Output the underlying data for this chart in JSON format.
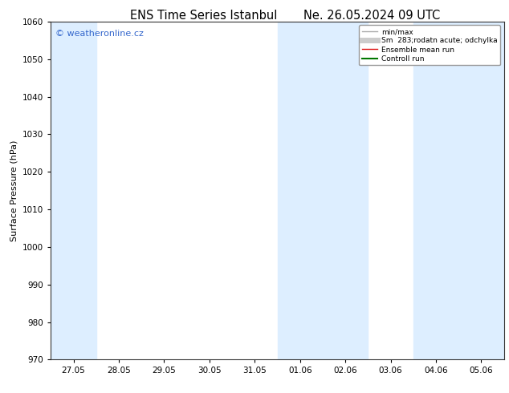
{
  "title_left": "ENS Time Series Istanbul",
  "title_right": "Ne. 26.05.2024 09 UTC",
  "ylabel": "Surface Pressure (hPa)",
  "ylim": [
    970,
    1060
  ],
  "yticks": [
    970,
    980,
    990,
    1000,
    1010,
    1020,
    1030,
    1040,
    1050,
    1060
  ],
  "x_labels": [
    "27.05",
    "28.05",
    "29.05",
    "30.05",
    "31.05",
    "01.06",
    "02.06",
    "03.06",
    "04.06",
    "05.06"
  ],
  "x_values": [
    0,
    1,
    2,
    3,
    4,
    5,
    6,
    7,
    8,
    9
  ],
  "xlim": [
    -0.5,
    9.5
  ],
  "shaded_bands": [
    {
      "x_start": -0.5,
      "x_end": 0.5,
      "color": "#ddeeff"
    },
    {
      "x_start": 4.5,
      "x_end": 6.5,
      "color": "#ddeeff"
    },
    {
      "x_start": 7.5,
      "x_end": 9.5,
      "color": "#ddeeff"
    }
  ],
  "watermark": "© weatheronline.cz",
  "watermark_color": "#3366cc",
  "legend_entries": [
    {
      "label": "min/max",
      "color": "#aaaaaa",
      "lw": 1.0
    },
    {
      "label": "Sm  283;rodatn acute; odchylka",
      "color": "#cccccc",
      "lw": 5
    },
    {
      "label": "Ensemble mean run",
      "color": "#dd1111",
      "lw": 1.0
    },
    {
      "label": "Controll run",
      "color": "#007700",
      "lw": 1.5
    }
  ],
  "bg_color": "#ffffff",
  "plot_bg_color": "#ffffff",
  "title_fontsize": 10.5,
  "tick_fontsize": 7.5,
  "ylabel_fontsize": 8,
  "watermark_fontsize": 8
}
